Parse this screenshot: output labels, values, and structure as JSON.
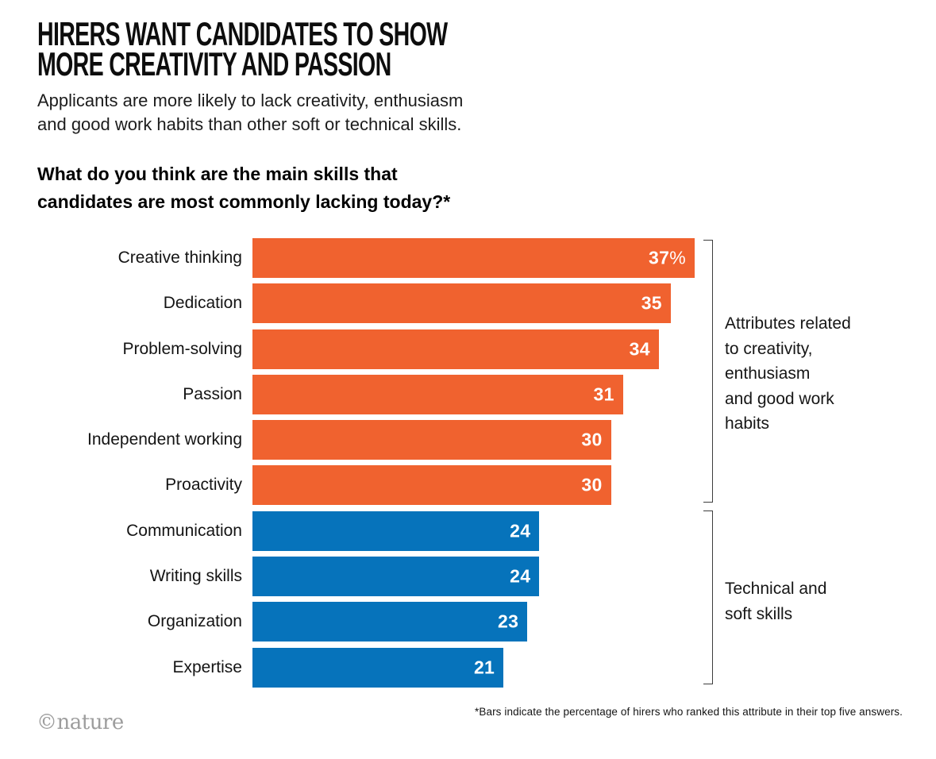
{
  "header": {
    "title_line1": "HIRERS WANT CANDIDATES TO SHOW",
    "title_line2": "MORE CREATIVITY AND PASSION",
    "subtitle_line1": "Applicants are more likely to lack creativity, enthusiasm",
    "subtitle_line2": "and good work habits than other soft or technical skills."
  },
  "question": {
    "line1": "What do you think are the main skills that",
    "line2": "candidates are most commonly lacking today?*"
  },
  "chart_data": {
    "type": "bar",
    "orientation": "horizontal",
    "title": "What do you think are the main skills that candidates are most commonly lacking today?*",
    "categories": [
      "Creative thinking",
      "Dedication",
      "Problem-solving",
      "Passion",
      "Independent working",
      "Proactivity",
      "Communication",
      "Writing skills",
      "Organization",
      "Expertise"
    ],
    "values": [
      37,
      35,
      34,
      31,
      30,
      30,
      24,
      24,
      23,
      21
    ],
    "unit": "%",
    "first_value_label": "37%",
    "value_labels_inside_bars": true,
    "max_value": 37,
    "axis_shown": false,
    "groups": [
      {
        "label": "Attributes related to creativity, enthusiasm and good work habits",
        "color": "#F0622F",
        "start_index": 0,
        "end_index": 5
      },
      {
        "label": "Technical and soft skills",
        "color": "#0673BB",
        "start_index": 6,
        "end_index": 9
      }
    ]
  },
  "annotations": {
    "group1_lines": [
      "Attributes related",
      "to creativity,",
      "enthusiasm",
      "and good work",
      "habits"
    ],
    "group2_lines": [
      "Technical and",
      "soft skills"
    ]
  },
  "footnote": "*Bars indicate the percentage of hirers who ranked this attribute in their top five answers.",
  "credit": "©nature"
}
